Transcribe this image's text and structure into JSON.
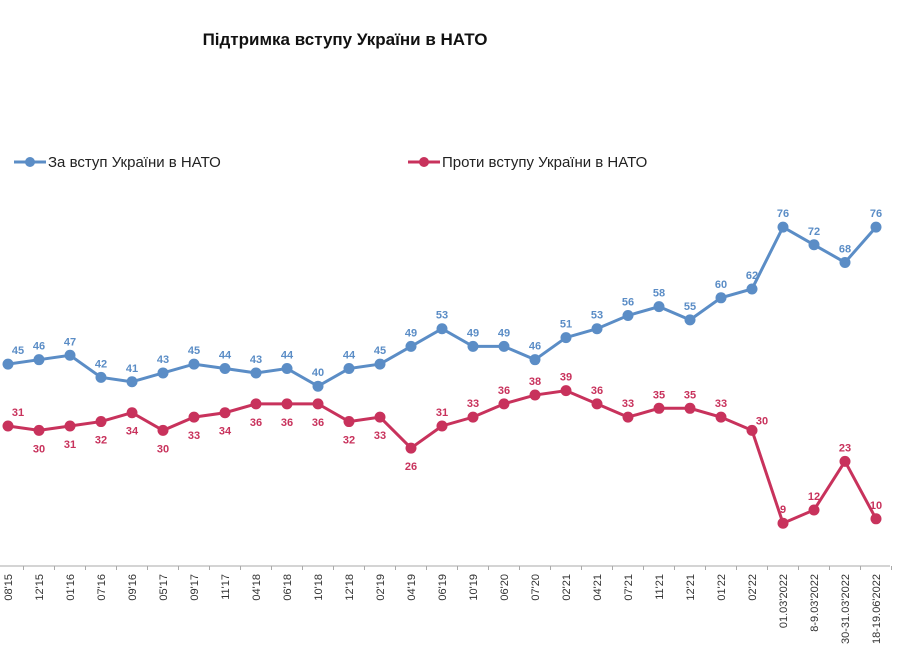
{
  "chart_data": {
    "type": "line",
    "title": "Підтримка вступу України в НАТО",
    "categories": [
      "08'15",
      "12'15",
      "01'16",
      "07'16",
      "09'16",
      "05'17",
      "09'17",
      "11'17",
      "04'18",
      "06'18",
      "10'18",
      "12'18",
      "02'19",
      "04'19",
      "06'19",
      "10'19",
      "06'20",
      "07'20",
      "02'21",
      "04'21",
      "07'21",
      "11'21",
      "12'21",
      "01'22",
      "02'22",
      "01.03'2022",
      "8-9.03'2022",
      "30-31.03'2022",
      "18-19.06'2022"
    ],
    "series": [
      {
        "name": "За вступ України в НАТО",
        "color": "#5b8dc6",
        "values": [
          45,
          46,
          47,
          42,
          41,
          43,
          45,
          44,
          43,
          44,
          40,
          44,
          45,
          49,
          53,
          49,
          49,
          46,
          51,
          53,
          56,
          58,
          55,
          60,
          62,
          76,
          72,
          68,
          76
        ]
      },
      {
        "name": "Проти вступу України в НАТО",
        "color": "#c8325c",
        "values": [
          31,
          30,
          31,
          32,
          34,
          30,
          33,
          34,
          36,
          36,
          36,
          32,
          33,
          26,
          31,
          33,
          36,
          38,
          39,
          36,
          33,
          35,
          35,
          33,
          30,
          9,
          12,
          23,
          10
        ]
      }
    ],
    "legend_position": "top-left",
    "grid": false,
    "data_labels": true
  }
}
